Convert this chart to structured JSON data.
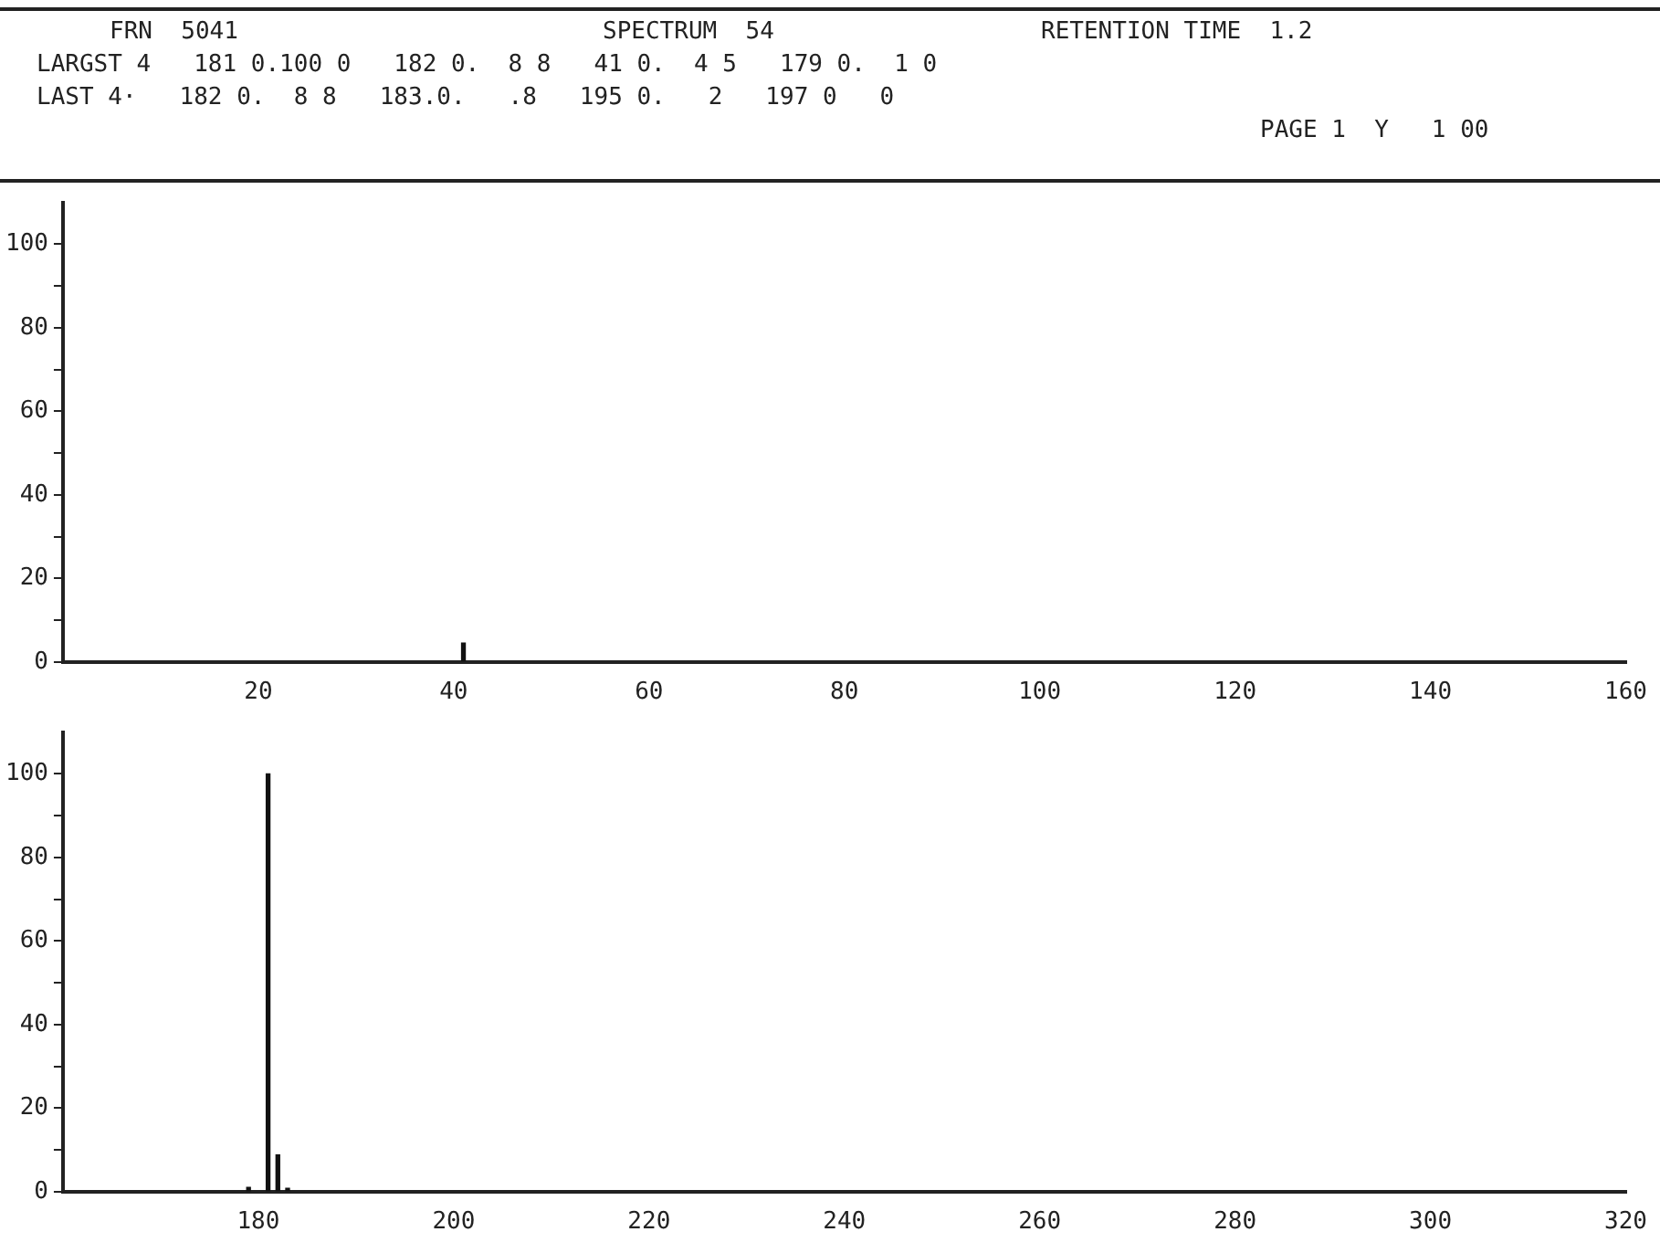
{
  "chart_data": [
    {
      "type": "other",
      "annotations": [
        "FRN  5041",
        "SPECTRUM  54",
        "RETENTION TIME  1.2",
        "LARGST 4   181 0.100 0   182 0.  8 8   41 0.  4 5   179 0.  1 0",
        "LAST 4·   182 0.  8 8   183.0.   .8   195 0.   2   197 0   0",
        "PAGE 1  Y   1 00"
      ]
    },
    {
      "type": "bar",
      "x": [
        41
      ],
      "values": [
        4.5
      ],
      "color": "#111111",
      "xlim": [
        0,
        160
      ],
      "xticks": [
        20,
        40,
        60,
        80,
        100,
        120,
        140,
        160
      ],
      "ylim": [
        0,
        110
      ],
      "yticks": [
        0,
        {
          "value": 10,
          "label": null
        },
        20,
        {
          "value": 30,
          "label": null
        },
        40,
        {
          "value": 50,
          "label": null
        },
        60,
        {
          "value": 70,
          "label": null
        },
        80,
        {
          "value": 90,
          "label": null
        },
        100
      ],
      "grid": false
    },
    {
      "type": "bar",
      "x": [
        179,
        181,
        182,
        183
      ],
      "values": [
        1.0,
        100,
        8.8,
        0.8
      ],
      "color": "#111111",
      "xlim": [
        160,
        320
      ],
      "xticks": [
        180,
        200,
        220,
        240,
        260,
        280,
        300,
        320
      ],
      "ylim": [
        0,
        110
      ],
      "yticks": [
        0,
        {
          "value": 10,
          "label": null
        },
        20,
        {
          "value": 30,
          "label": null
        },
        40,
        {
          "value": 50,
          "label": null
        },
        60,
        {
          "value": 70,
          "label": null
        },
        80,
        {
          "value": 90,
          "label": null
        },
        100
      ],
      "grid": false
    }
  ]
}
